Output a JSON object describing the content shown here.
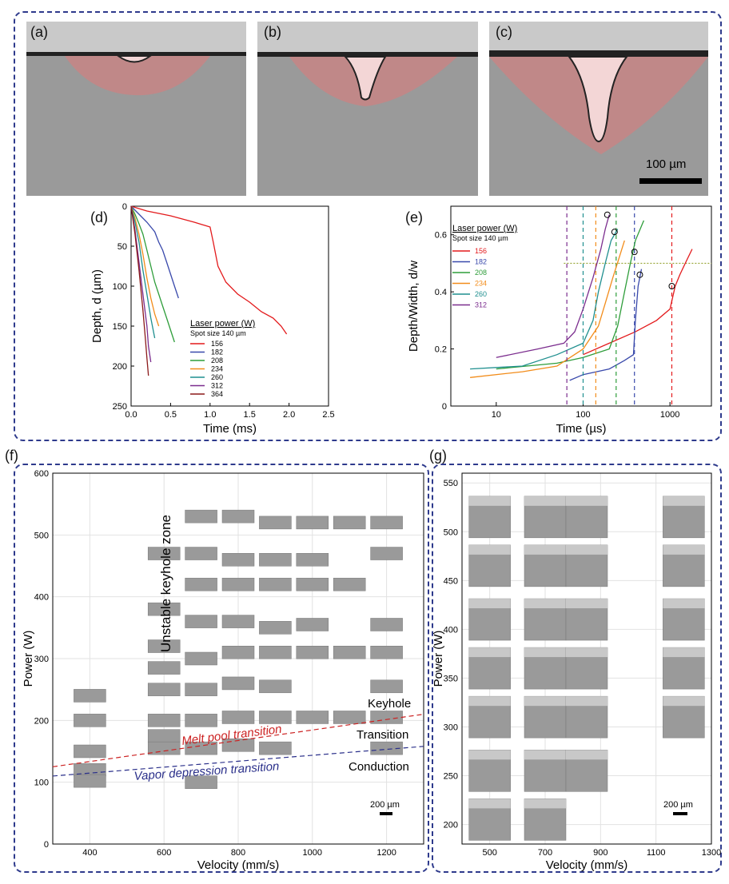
{
  "panels": {
    "a": "(a)",
    "b": "(b)",
    "c": "(c)",
    "d": "(d)",
    "e": "(e)",
    "f": "(f)",
    "g": "(g)"
  },
  "micrograph_scale": "100 µm",
  "colors": {
    "frame": "#2e3a8c",
    "melt_pool": "#e07a7a",
    "p156": "#e31a1c",
    "p182": "#3949ab",
    "p208": "#2e9d3a",
    "p234": "#f28c1a",
    "p260": "#1f8f8f",
    "p312": "#7b2d8e",
    "p364": "#8b1a1a"
  },
  "chart_data": [
    {
      "id": "d",
      "type": "line",
      "xlabel": "Time (ms)",
      "ylabel": "Depth, d (µm)",
      "xlim": [
        0,
        2.5
      ],
      "ylim": [
        0,
        250
      ],
      "y_inverted": true,
      "xticks": [
        "0.0",
        "0.5",
        "1.0",
        "1.5",
        "2.0",
        "2.5"
      ],
      "yticks": [
        "0",
        "50",
        "100",
        "150",
        "200",
        "250"
      ],
      "legend_title": "Laser power (W)",
      "legend_subtitle": "Spot size 140 µm",
      "series": [
        {
          "name": "156",
          "color": "#e31a1c",
          "x": [
            0,
            0.2,
            0.5,
            0.8,
            1.0,
            1.04,
            1.1,
            1.2,
            1.35,
            1.5,
            1.65,
            1.8,
            1.9,
            1.97
          ],
          "y": [
            0,
            6,
            12,
            20,
            26,
            45,
            75,
            95,
            110,
            120,
            132,
            140,
            150,
            160
          ]
        },
        {
          "name": "182",
          "color": "#3949ab",
          "x": [
            0,
            0.1,
            0.2,
            0.3,
            0.35,
            0.4,
            0.45,
            0.5,
            0.55,
            0.6
          ],
          "y": [
            0,
            10,
            20,
            32,
            45,
            55,
            70,
            85,
            100,
            115
          ]
        },
        {
          "name": "208",
          "color": "#2e9d3a",
          "x": [
            0,
            0.05,
            0.1,
            0.15,
            0.2,
            0.25,
            0.3,
            0.35,
            0.4,
            0.45,
            0.5,
            0.55
          ],
          "y": [
            0,
            10,
            22,
            35,
            55,
            75,
            95,
            110,
            125,
            140,
            155,
            170
          ]
        },
        {
          "name": "234",
          "color": "#f28c1a",
          "x": [
            0,
            0.05,
            0.1,
            0.15,
            0.2,
            0.25,
            0.3,
            0.35
          ],
          "y": [
            0,
            15,
            35,
            60,
            90,
            115,
            135,
            150
          ]
        },
        {
          "name": "260",
          "color": "#1f8f8f",
          "x": [
            0,
            0.05,
            0.1,
            0.15,
            0.2,
            0.25,
            0.3
          ],
          "y": [
            0,
            20,
            45,
            80,
            110,
            140,
            165
          ]
        },
        {
          "name": "312",
          "color": "#7b2d8e",
          "x": [
            0,
            0.05,
            0.1,
            0.15,
            0.2,
            0.22,
            0.25
          ],
          "y": [
            0,
            30,
            70,
            110,
            150,
            175,
            195
          ]
        },
        {
          "name": "364",
          "color": "#8b1a1a",
          "x": [
            0,
            0.05,
            0.1,
            0.15,
            0.18,
            0.2,
            0.22
          ],
          "y": [
            0,
            35,
            80,
            130,
            165,
            190,
            212
          ]
        }
      ]
    },
    {
      "id": "e",
      "type": "line",
      "xscale": "log",
      "xlabel": "Time (µs)",
      "ylabel": "Depth/Width, d/w",
      "xlim": [
        3,
        3000
      ],
      "ylim": [
        0,
        0.7
      ],
      "xticks": [
        {
          "value": 10,
          "label": "10"
        },
        {
          "value": 100,
          "label": "100"
        },
        {
          "value": 1000,
          "label": "1000"
        }
      ],
      "yticks": [
        "0",
        "0.2",
        "0.4",
        "0.6"
      ],
      "threshold_y": 0.5,
      "legend_title": "Laser power (W)",
      "legend_subtitle": "Spot size 140 µm",
      "series": [
        {
          "name": "156",
          "color": "#e31a1c",
          "x": [
            100,
            200,
            400,
            700,
            1000,
            1150,
            1300,
            1500,
            1800
          ],
          "y": [
            0.18,
            0.22,
            0.26,
            0.3,
            0.34,
            0.42,
            0.46,
            0.5,
            0.55
          ],
          "vline": 1050,
          "marker": [
            1050,
            0.42
          ]
        },
        {
          "name": "182",
          "color": "#3949ab",
          "x": [
            70,
            100,
            200,
            300,
            380,
            400,
            430,
            470
          ],
          "y": [
            0.09,
            0.11,
            0.13,
            0.16,
            0.18,
            0.3,
            0.42,
            0.48
          ],
          "vline": 390,
          "marker": [
            450,
            0.46
          ]
        },
        {
          "name": "208",
          "color": "#2e9d3a",
          "x": [
            10,
            50,
            100,
            200,
            250,
            300,
            350,
            400,
            500
          ],
          "y": [
            0.13,
            0.15,
            0.17,
            0.2,
            0.28,
            0.4,
            0.5,
            0.58,
            0.65
          ],
          "vline": 240,
          "marker": [
            390,
            0.54
          ]
        },
        {
          "name": "234",
          "color": "#f28c1a",
          "x": [
            5,
            20,
            50,
            100,
            150,
            180,
            220,
            260,
            300
          ],
          "y": [
            0.1,
            0.12,
            0.14,
            0.2,
            0.28,
            0.36,
            0.45,
            0.52,
            0.58
          ],
          "vline": 140,
          "marker": null
        },
        {
          "name": "260",
          "color": "#1f8f8f",
          "x": [
            5,
            20,
            50,
            100,
            130,
            150,
            180,
            210,
            250
          ],
          "y": [
            0.13,
            0.14,
            0.18,
            0.22,
            0.3,
            0.4,
            0.5,
            0.58,
            0.62
          ],
          "vline": 100,
          "marker": [
            230,
            0.61
          ]
        },
        {
          "name": "312",
          "color": "#7b2d8e",
          "x": [
            10,
            30,
            60,
            80,
            100,
            130,
            160,
            180,
            200
          ],
          "y": [
            0.17,
            0.2,
            0.22,
            0.26,
            0.34,
            0.45,
            0.55,
            0.62,
            0.67
          ],
          "vline": 65,
          "marker": [
            190,
            0.67
          ]
        }
      ]
    },
    {
      "id": "f",
      "type": "scatter",
      "xlabel": "Velocity (mm/s)",
      "ylabel": "Power (W)",
      "xlim": [
        300,
        1300
      ],
      "ylim": [
        0,
        600
      ],
      "xticks": [
        "400",
        "600",
        "800",
        "1000",
        "1200"
      ],
      "yticks": [
        "0",
        "100",
        "200",
        "300",
        "400",
        "500",
        "600"
      ],
      "region_labels": [
        "Unstable keyhole zone",
        "Keyhole",
        "Transition",
        "Conduction"
      ],
      "boundaries": [
        {
          "name": "Melt pool transition",
          "color": "#cc2222",
          "x": [
            300,
            1300
          ],
          "y": [
            125,
            210
          ]
        },
        {
          "name": "Vapor depression transition",
          "color": "#2a2f8a",
          "x": [
            300,
            1300
          ],
          "y": [
            110,
            158
          ]
        }
      ],
      "scale_label": "200 µm",
      "samples": [
        [
          400,
          240
        ],
        [
          400,
          200
        ],
        [
          400,
          150
        ],
        [
          400,
          120
        ],
        [
          400,
          102
        ],
        [
          600,
          470
        ],
        [
          600,
          380
        ],
        [
          600,
          320
        ],
        [
          600,
          285
        ],
        [
          600,
          250
        ],
        [
          600,
          200
        ],
        [
          600,
          175
        ],
        [
          600,
          155
        ],
        [
          700,
          530
        ],
        [
          700,
          470
        ],
        [
          700,
          420
        ],
        [
          700,
          360
        ],
        [
          700,
          300
        ],
        [
          700,
          250
        ],
        [
          700,
          200
        ],
        [
          700,
          155
        ],
        [
          700,
          100
        ],
        [
          800,
          530
        ],
        [
          800,
          460
        ],
        [
          800,
          420
        ],
        [
          800,
          360
        ],
        [
          800,
          310
        ],
        [
          800,
          260
        ],
        [
          800,
          205
        ],
        [
          800,
          160
        ],
        [
          900,
          520
        ],
        [
          900,
          460
        ],
        [
          900,
          420
        ],
        [
          900,
          350
        ],
        [
          900,
          310
        ],
        [
          900,
          255
        ],
        [
          900,
          205
        ],
        [
          900,
          155
        ],
        [
          1000,
          520
        ],
        [
          1000,
          460
        ],
        [
          1000,
          420
        ],
        [
          1000,
          355
        ],
        [
          1000,
          310
        ],
        [
          1000,
          205
        ],
        [
          1100,
          520
        ],
        [
          1100,
          420
        ],
        [
          1100,
          310
        ],
        [
          1100,
          205
        ],
        [
          1200,
          520
        ],
        [
          1200,
          470
        ],
        [
          1200,
          355
        ],
        [
          1200,
          310
        ],
        [
          1200,
          255
        ],
        [
          1200,
          205
        ],
        [
          1200,
          155
        ]
      ]
    },
    {
      "id": "g",
      "type": "scatter",
      "xlabel": "Velocity (mm/s)",
      "ylabel": "Power (W)",
      "xlim": [
        400,
        1300
      ],
      "ylim": [
        180,
        560
      ],
      "xticks": [
        "500",
        "700",
        "900",
        "1100",
        "1300"
      ],
      "yticks": [
        "200",
        "250",
        "300",
        "350",
        "400",
        "450",
        "500",
        "550"
      ],
      "scale_label": "200 µm",
      "samples": [
        [
          500,
          520
        ],
        [
          700,
          520
        ],
        [
          850,
          520
        ],
        [
          1200,
          520
        ],
        [
          500,
          470
        ],
        [
          700,
          470
        ],
        [
          850,
          470
        ],
        [
          1200,
          470
        ],
        [
          500,
          415
        ],
        [
          700,
          415
        ],
        [
          850,
          415
        ],
        [
          1200,
          415
        ],
        [
          500,
          365
        ],
        [
          700,
          365
        ],
        [
          850,
          365
        ],
        [
          1200,
          365
        ],
        [
          500,
          315
        ],
        [
          700,
          315
        ],
        [
          850,
          315
        ],
        [
          1200,
          315
        ],
        [
          500,
          260
        ],
        [
          700,
          260
        ],
        [
          850,
          260
        ],
        [
          500,
          210
        ],
        [
          700,
          210
        ]
      ]
    }
  ]
}
